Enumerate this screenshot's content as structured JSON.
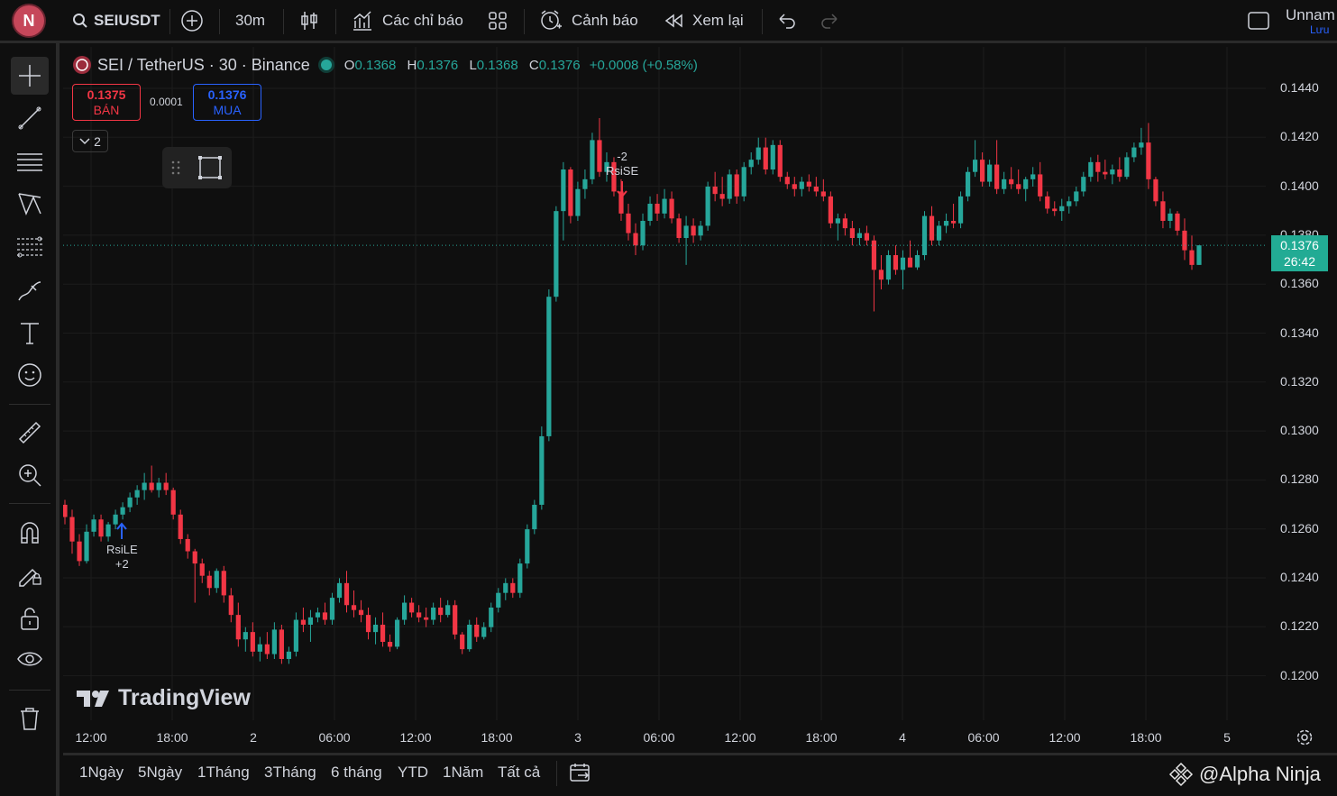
{
  "topbar": {
    "avatar_letter": "N",
    "symbol": "SEIUSDT",
    "interval": "30m",
    "indicators_label": "Các chỉ báo",
    "alerts_label": "Cảnh báo",
    "replay_label": "Xem lại",
    "layout_name": "Unnam",
    "save_label": "Lưu"
  },
  "legend": {
    "title": "SEI / TetherUS · 30 · Binance",
    "o_key": "O",
    "o_val": "0.1368",
    "h_key": "H",
    "h_val": "0.1376",
    "l_key": "L",
    "l_val": "0.1368",
    "c_key": "C",
    "c_val": "0.1376",
    "change": "+0.0008 (+0.58%)"
  },
  "trade": {
    "sell_price": "0.1375",
    "sell_label": "BÁN",
    "spread": "0.0001",
    "buy_price": "0.1376",
    "buy_label": "MUA",
    "collapse_count": "2"
  },
  "price_axis": [
    "0.1440",
    "0.1420",
    "0.1400",
    "0.1380",
    "0.1360",
    "0.1340",
    "0.1320",
    "0.1300",
    "0.1280",
    "0.1260",
    "0.1240",
    "0.1220",
    "0.1200"
  ],
  "current_price": {
    "price": "0.1376",
    "countdown": "26:42"
  },
  "time_axis": [
    "12:00",
    "18:00",
    "2",
    "06:00",
    "12:00",
    "18:00",
    "3",
    "06:00",
    "12:00",
    "18:00",
    "4",
    "06:00",
    "12:00",
    "18:00",
    "5"
  ],
  "signals": {
    "buy": {
      "name": "RsiLE",
      "qty": "+2"
    },
    "sell": {
      "name": "RsiSE",
      "qty": "-2"
    }
  },
  "brand": "TradingView",
  "ranges": [
    "1Ngày",
    "5Ngày",
    "1Tháng",
    "3Tháng",
    "6 tháng",
    "YTD",
    "1Năm",
    "Tất cả"
  ],
  "watermark": "@Alpha Ninja",
  "colors": {
    "up": "#26a69a",
    "down": "#f23645",
    "background": "#0f0f0f",
    "grid": "#1c1c1c"
  },
  "chart_data": {
    "type": "candlestick",
    "title": "SEI / TetherUS · 30 · Binance",
    "ylim": [
      0.1195,
      0.145
    ],
    "candles_ohlc": [
      [
        0.127,
        0.1272,
        0.1262,
        0.1265
      ],
      [
        0.1265,
        0.1268,
        0.125,
        0.1255
      ],
      [
        0.1255,
        0.1258,
        0.1245,
        0.1247
      ],
      [
        0.1247,
        0.1262,
        0.1246,
        0.1259
      ],
      [
        0.1259,
        0.1266,
        0.1257,
        0.1264
      ],
      [
        0.1264,
        0.1266,
        0.1255,
        0.1257
      ],
      [
        0.1257,
        0.1263,
        0.1255,
        0.1262
      ],
      [
        0.1262,
        0.1268,
        0.126,
        0.1266
      ],
      [
        0.1266,
        0.1271,
        0.1264,
        0.1269
      ],
      [
        0.1269,
        0.1275,
        0.1267,
        0.1273
      ],
      [
        0.1273,
        0.1278,
        0.127,
        0.1276
      ],
      [
        0.1276,
        0.1283,
        0.1272,
        0.1279
      ],
      [
        0.1279,
        0.1286,
        0.1275,
        0.1276
      ],
      [
        0.1276,
        0.1281,
        0.1273,
        0.1279
      ],
      [
        0.1279,
        0.1283,
        0.1274,
        0.1276
      ],
      [
        0.1276,
        0.1277,
        0.1264,
        0.1266
      ],
      [
        0.1266,
        0.1268,
        0.1254,
        0.1256
      ],
      [
        0.1256,
        0.1258,
        0.1248,
        0.1251
      ],
      [
        0.1251,
        0.1252,
        0.123,
        0.1246
      ],
      [
        0.1246,
        0.1248,
        0.1238,
        0.1241
      ],
      [
        0.1241,
        0.1243,
        0.1233,
        0.1236
      ],
      [
        0.1236,
        0.1244,
        0.1234,
        0.1243
      ],
      [
        0.1243,
        0.1245,
        0.123,
        0.1233
      ],
      [
        0.1233,
        0.1236,
        0.1222,
        0.1225
      ],
      [
        0.1225,
        0.123,
        0.1212,
        0.1215
      ],
      [
        0.1215,
        0.122,
        0.121,
        0.1218
      ],
      [
        0.1218,
        0.1222,
        0.1208,
        0.121
      ],
      [
        0.121,
        0.1216,
        0.1206,
        0.1213
      ],
      [
        0.1213,
        0.1218,
        0.1207,
        0.1209
      ],
      [
        0.1209,
        0.1222,
        0.1207,
        0.1219
      ],
      [
        0.1219,
        0.1221,
        0.1205,
        0.1207
      ],
      [
        0.1207,
        0.1212,
        0.1205,
        0.121
      ],
      [
        0.121,
        0.1226,
        0.1208,
        0.1223
      ],
      [
        0.1223,
        0.1228,
        0.1218,
        0.1221
      ],
      [
        0.1221,
        0.1227,
        0.1214,
        0.1224
      ],
      [
        0.1224,
        0.1228,
        0.1222,
        0.1226
      ],
      [
        0.1226,
        0.123,
        0.1221,
        0.1223
      ],
      [
        0.1223,
        0.1234,
        0.1221,
        0.1232
      ],
      [
        0.1232,
        0.124,
        0.123,
        0.1238
      ],
      [
        0.1238,
        0.1243,
        0.1226,
        0.1229
      ],
      [
        0.1229,
        0.1235,
        0.1224,
        0.1227
      ],
      [
        0.1227,
        0.1231,
        0.1222,
        0.1225
      ],
      [
        0.1225,
        0.1228,
        0.1215,
        0.1218
      ],
      [
        0.1218,
        0.1224,
        0.1213,
        0.1221
      ],
      [
        0.1221,
        0.1226,
        0.1212,
        0.1214
      ],
      [
        0.1214,
        0.1217,
        0.121,
        0.1212
      ],
      [
        0.1212,
        0.1224,
        0.1211,
        0.1223
      ],
      [
        0.1223,
        0.1233,
        0.1221,
        0.123
      ],
      [
        0.123,
        0.1232,
        0.1224,
        0.1226
      ],
      [
        0.1226,
        0.1229,
        0.1222,
        0.1224
      ],
      [
        0.1224,
        0.1228,
        0.122,
        0.1223
      ],
      [
        0.1223,
        0.123,
        0.1221,
        0.1228
      ],
      [
        0.1228,
        0.1232,
        0.1222,
        0.1225
      ],
      [
        0.1225,
        0.1231,
        0.1224,
        0.1229
      ],
      [
        0.1229,
        0.1231,
        0.1215,
        0.1217
      ],
      [
        0.1217,
        0.1218,
        0.1209,
        0.1211
      ],
      [
        0.1211,
        0.1223,
        0.121,
        0.1221
      ],
      [
        0.1221,
        0.1224,
        0.1214,
        0.1216
      ],
      [
        0.1216,
        0.1222,
        0.1215,
        0.122
      ],
      [
        0.122,
        0.123,
        0.1218,
        0.1228
      ],
      [
        0.1228,
        0.1236,
        0.1226,
        0.1234
      ],
      [
        0.1234,
        0.124,
        0.1231,
        0.1238
      ],
      [
        0.1238,
        0.124,
        0.1232,
        0.1234
      ],
      [
        0.1234,
        0.1248,
        0.1232,
        0.1246
      ],
      [
        0.1246,
        0.1262,
        0.1244,
        0.126
      ],
      [
        0.126,
        0.1272,
        0.1258,
        0.127
      ],
      [
        0.127,
        0.1302,
        0.1268,
        0.1298
      ],
      [
        0.1298,
        0.1358,
        0.1296,
        0.1355
      ],
      [
        0.1355,
        0.1392,
        0.1353,
        0.139
      ],
      [
        0.139,
        0.141,
        0.1378,
        0.1407
      ],
      [
        0.1407,
        0.1408,
        0.1385,
        0.1388
      ],
      [
        0.1388,
        0.1402,
        0.1386,
        0.1399
      ],
      [
        0.1399,
        0.1407,
        0.1395,
        0.1403
      ],
      [
        0.1403,
        0.1422,
        0.1401,
        0.1419
      ],
      [
        0.1419,
        0.1428,
        0.1404,
        0.1406
      ],
      [
        0.1406,
        0.1414,
        0.1402,
        0.141
      ],
      [
        0.141,
        0.1412,
        0.1396,
        0.1398
      ],
      [
        0.1398,
        0.1403,
        0.1386,
        0.1389
      ],
      [
        0.1389,
        0.1393,
        0.1378,
        0.1381
      ],
      [
        0.1381,
        0.1385,
        0.1372,
        0.1376
      ],
      [
        0.1376,
        0.1389,
        0.1374,
        0.1386
      ],
      [
        0.1386,
        0.1396,
        0.1384,
        0.1393
      ],
      [
        0.1393,
        0.1397,
        0.1386,
        0.1389
      ],
      [
        0.1389,
        0.1399,
        0.1387,
        0.1395
      ],
      [
        0.1395,
        0.1398,
        0.1385,
        0.1387
      ],
      [
        0.1387,
        0.1389,
        0.1377,
        0.1379
      ],
      [
        0.1379,
        0.1388,
        0.1368,
        0.1384
      ],
      [
        0.1384,
        0.1387,
        0.1377,
        0.138
      ],
      [
        0.138,
        0.1386,
        0.1378,
        0.1384
      ],
      [
        0.1384,
        0.1402,
        0.1382,
        0.14
      ],
      [
        0.14,
        0.1406,
        0.1394,
        0.1397
      ],
      [
        0.1397,
        0.1404,
        0.1392,
        0.1395
      ],
      [
        0.1395,
        0.1407,
        0.1393,
        0.1405
      ],
      [
        0.1405,
        0.1407,
        0.1393,
        0.1396
      ],
      [
        0.1396,
        0.141,
        0.1394,
        0.1408
      ],
      [
        0.1408,
        0.1414,
        0.1405,
        0.1411
      ],
      [
        0.1411,
        0.142,
        0.1409,
        0.1416
      ],
      [
        0.1416,
        0.142,
        0.1405,
        0.1407
      ],
      [
        0.1407,
        0.1419,
        0.1405,
        0.1417
      ],
      [
        0.1417,
        0.1419,
        0.1402,
        0.1404
      ],
      [
        0.1404,
        0.1406,
        0.1399,
        0.1401
      ],
      [
        0.1401,
        0.1404,
        0.1396,
        0.1399
      ],
      [
        0.1399,
        0.1404,
        0.1396,
        0.1402
      ],
      [
        0.1402,
        0.1405,
        0.1398,
        0.14
      ],
      [
        0.14,
        0.1404,
        0.1396,
        0.1398
      ],
      [
        0.1398,
        0.1403,
        0.1394,
        0.1396
      ],
      [
        0.1396,
        0.1398,
        0.1383,
        0.1385
      ],
      [
        0.1385,
        0.1389,
        0.1378,
        0.1387
      ],
      [
        0.1387,
        0.1389,
        0.138,
        0.1383
      ],
      [
        0.1383,
        0.1386,
        0.1376,
        0.1379
      ],
      [
        0.1379,
        0.1383,
        0.1376,
        0.1381
      ],
      [
        0.1381,
        0.1384,
        0.1376,
        0.1378
      ],
      [
        0.1378,
        0.138,
        0.1349,
        0.1366
      ],
      [
        0.1366,
        0.1372,
        0.1358,
        0.1362
      ],
      [
        0.1362,
        0.1374,
        0.136,
        0.1372
      ],
      [
        0.1372,
        0.1376,
        0.1364,
        0.1366
      ],
      [
        0.1366,
        0.1374,
        0.1358,
        0.1371
      ],
      [
        0.1371,
        0.1378,
        0.1369,
        0.1367
      ],
      [
        0.1367,
        0.1374,
        0.1366,
        0.1372
      ],
      [
        0.1372,
        0.139,
        0.137,
        0.1388
      ],
      [
        0.1388,
        0.1392,
        0.1376,
        0.1378
      ],
      [
        0.1378,
        0.1386,
        0.1376,
        0.1384
      ],
      [
        0.1384,
        0.1389,
        0.1381,
        0.1386
      ],
      [
        0.1386,
        0.1393,
        0.1383,
        0.1385
      ],
      [
        0.1385,
        0.1398,
        0.1383,
        0.1396
      ],
      [
        0.1396,
        0.1408,
        0.1394,
        0.1406
      ],
      [
        0.1406,
        0.1419,
        0.1404,
        0.1411
      ],
      [
        0.1411,
        0.1414,
        0.14,
        0.1402
      ],
      [
        0.1402,
        0.1411,
        0.14,
        0.1409
      ],
      [
        0.1409,
        0.1419,
        0.1397,
        0.1399
      ],
      [
        0.1399,
        0.1406,
        0.1397,
        0.1403
      ],
      [
        0.1403,
        0.1408,
        0.1399,
        0.1401
      ],
      [
        0.1401,
        0.1407,
        0.1397,
        0.1399
      ],
      [
        0.1399,
        0.1404,
        0.1394,
        0.1403
      ],
      [
        0.1403,
        0.1408,
        0.14,
        0.1405
      ],
      [
        0.1405,
        0.141,
        0.1394,
        0.1396
      ],
      [
        0.1396,
        0.1398,
        0.1389,
        0.1391
      ],
      [
        0.1391,
        0.1394,
        0.1388,
        0.139
      ],
      [
        0.139,
        0.1395,
        0.1386,
        0.1392
      ],
      [
        0.1392,
        0.1396,
        0.1389,
        0.1394
      ],
      [
        0.1394,
        0.14,
        0.1392,
        0.1398
      ],
      [
        0.1398,
        0.1406,
        0.1396,
        0.1404
      ],
      [
        0.1404,
        0.1412,
        0.1402,
        0.141
      ],
      [
        0.141,
        0.1413,
        0.1402,
        0.1406
      ],
      [
        0.1406,
        0.1411,
        0.1403,
        0.1405
      ],
      [
        0.1405,
        0.1409,
        0.1401,
        0.1407
      ],
      [
        0.1407,
        0.1412,
        0.1402,
        0.1404
      ],
      [
        0.1404,
        0.1414,
        0.1403,
        0.1412
      ],
      [
        0.1412,
        0.1418,
        0.141,
        0.1416
      ],
      [
        0.1416,
        0.1424,
        0.1413,
        0.1418
      ],
      [
        0.1418,
        0.1426,
        0.1399,
        0.1403
      ],
      [
        0.1403,
        0.1404,
        0.1392,
        0.1394
      ],
      [
        0.1394,
        0.1398,
        0.1383,
        0.1386
      ],
      [
        0.1386,
        0.1391,
        0.1383,
        0.1389
      ],
      [
        0.1389,
        0.139,
        0.138,
        0.1382
      ],
      [
        0.1382,
        0.1387,
        0.137,
        0.1374
      ],
      [
        0.1374,
        0.138,
        0.1366,
        0.1368
      ],
      [
        0.1368,
        0.1376,
        0.1368,
        0.1376
      ]
    ]
  }
}
